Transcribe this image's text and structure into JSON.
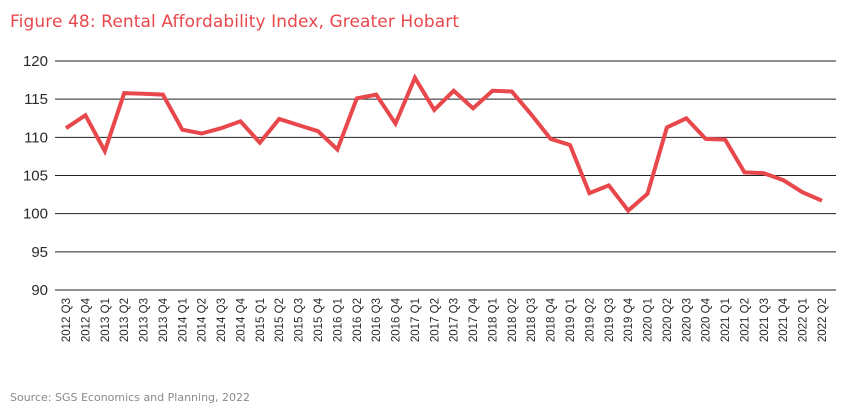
{
  "title": "Figure 48: Rental Affordability Index, Greater Hobart",
  "source": "Source: SGS Economics and Planning, 2022",
  "colors": {
    "title": "#e8474c",
    "line": "#e8474c",
    "grid": "#222222",
    "text": "#2a2a2a"
  },
  "chart_data": {
    "type": "line",
    "title": "Figure 48: Rental Affordability Index, Greater Hobart",
    "xlabel": "",
    "ylabel": "",
    "ylim": [
      90,
      120
    ],
    "yticks": [
      90,
      95,
      100,
      105,
      110,
      115,
      120
    ],
    "grid": true,
    "categories": [
      "2012 Q3",
      "2012 Q4",
      "2013 Q1",
      "2013 Q2",
      "2013 Q3",
      "2013 Q4",
      "2014 Q1",
      "2014 Q2",
      "2014 Q3",
      "2014 Q4",
      "2015 Q1",
      "2015 Q2",
      "2015 Q3",
      "2015 Q4",
      "2016 Q1",
      "2016 Q2",
      "2016 Q3",
      "2016 Q4",
      "2017 Q1",
      "2017 Q2",
      "2017 Q3",
      "2017 Q4",
      "2018 Q1",
      "2018 Q2",
      "2018 Q3",
      "2018 Q4",
      "2019 Q1",
      "2019 Q2",
      "2019 Q3",
      "2019 Q4",
      "2020 Q1",
      "2020 Q2",
      "2020 Q3",
      "2020 Q4",
      "2021 Q1",
      "2021 Q2",
      "2021 Q3",
      "2021 Q4",
      "2022 Q1",
      "2022 Q2"
    ],
    "series": [
      {
        "values": [
          111.2,
          112.9,
          108.2,
          115.8,
          115.7,
          115.6,
          111.0,
          110.5,
          111.2,
          112.1,
          109.3,
          112.4,
          111.6,
          110.8,
          108.4,
          115.1,
          115.6,
          111.8,
          117.8,
          113.6,
          116.1,
          113.8,
          116.1,
          116.0,
          113.0,
          109.8,
          109.0,
          102.7,
          103.7,
          100.4,
          102.6,
          111.3,
          112.5,
          109.8,
          109.7,
          105.4,
          105.3,
          104.4,
          102.8,
          101.7
        ]
      }
    ]
  }
}
